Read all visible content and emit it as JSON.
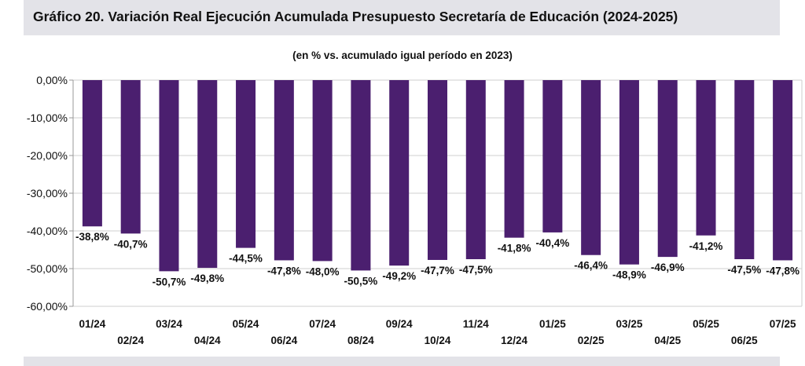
{
  "header": {
    "title": "Gráfico 20. Variación Real Ejecución Acumulada Presupuesto Secretaría de Educación (2024-2025)"
  },
  "chart_data": {
    "type": "bar",
    "title": "Gráfico 20. Variación Real Ejecución Acumulada Presupuesto Secretaría de Educación (2024-2025)",
    "subtitle": "(en % vs. acumulado igual período en 2023)",
    "categories": [
      "01/24",
      "02/24",
      "03/24",
      "04/24",
      "05/24",
      "06/24",
      "07/24",
      "08/24",
      "09/24",
      "10/24",
      "11/24",
      "12/24",
      "01/25",
      "02/25",
      "03/25",
      "04/25",
      "05/25",
      "06/25",
      "07/25"
    ],
    "values": [
      -38.8,
      -40.7,
      -50.7,
      -49.8,
      -44.5,
      -47.8,
      -48.0,
      -50.5,
      -49.2,
      -47.7,
      -47.5,
      -41.8,
      -40.4,
      -46.4,
      -48.9,
      -46.9,
      -41.2,
      -47.5,
      -47.8
    ],
    "data_labels": [
      "-38,8%",
      "-40,7%",
      "-50,7%",
      "-49,8%",
      "-44,5%",
      "-47,8%",
      "-48,0%",
      "-50,5%",
      "-49,2%",
      "-47,7%",
      "-47,5%",
      "-41,8%",
      "-40,4%",
      "-46,4%",
      "-48,9%",
      "-46,9%",
      "-41,2%",
      "-47,5%",
      "-47,8%"
    ],
    "yticks": [
      "0,00%",
      "-10,00%",
      "-20,00%",
      "-30,00%",
      "-40,00%",
      "-50,00%",
      "-60,00%"
    ],
    "ylim": [
      -60,
      0
    ],
    "grid": true,
    "bar_color": "#4b1f6f",
    "xlabel": "",
    "ylabel": ""
  }
}
